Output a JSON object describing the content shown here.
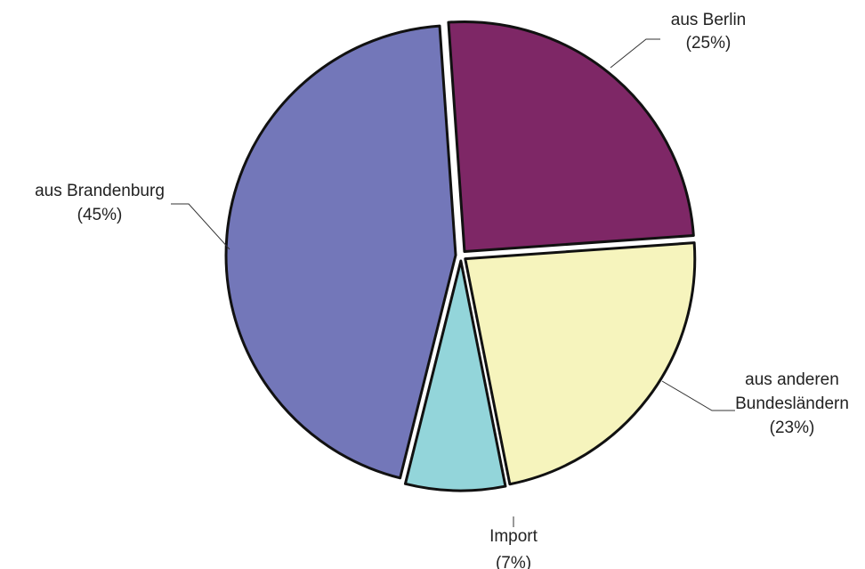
{
  "chart_data": {
    "type": "pie",
    "slices": [
      {
        "name": "aus Berlin",
        "pct_label": "(25%)",
        "value": 25,
        "color": "#7e2766"
      },
      {
        "name": "aus anderen Bundesländern",
        "lines": [
          "aus anderen",
          "Bundesländern"
        ],
        "pct_label": "(23%)",
        "value": 23,
        "color": "#f6f4bd"
      },
      {
        "name": "Import",
        "pct_label": "(7%)",
        "value": 7,
        "color": "#93d5da"
      },
      {
        "name": "aus Brandenburg",
        "pct_label": "(45%)",
        "value": 45,
        "color": "#7377b9"
      }
    ]
  }
}
